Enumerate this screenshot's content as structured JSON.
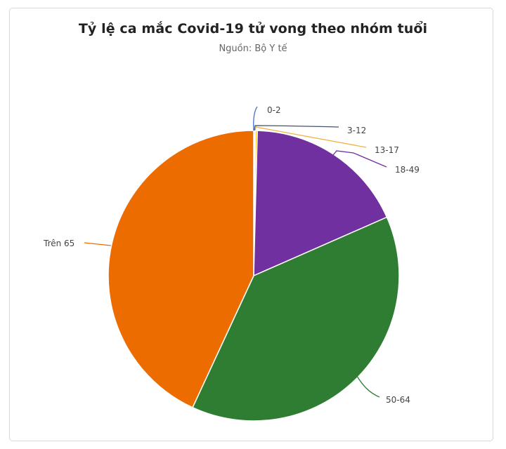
{
  "chart_data": {
    "type": "pie",
    "title": "Tỷ lệ ca mắc Covid-19 tử vong theo nhóm tuổi",
    "subtitle": "Nguồn: Bộ Y tế",
    "categories": [
      "0-2",
      "3-12",
      "13-17",
      "18-49",
      "50-64",
      "Trên 65"
    ],
    "values": [
      0.1,
      0.1,
      0.2,
      18.0,
      38.5,
      43.1
    ],
    "unit": "%",
    "colors": [
      "#4472c4",
      "#264478",
      "#ffc000",
      "#7030a0",
      "#2e7d32",
      "#ed6c00"
    ],
    "legend": "none (data labels with connectors)"
  },
  "header": {
    "title": "Tỷ lệ ca mắc Covid-19 tử vong theo nhóm tuổi",
    "subtitle": "Nguồn: Bộ Y tế"
  },
  "labels": {
    "l0": "0-2",
    "l1": "3-12",
    "l2": "13-17",
    "l3": "18-49",
    "l4": "50-64",
    "l5": "Trên 65"
  }
}
